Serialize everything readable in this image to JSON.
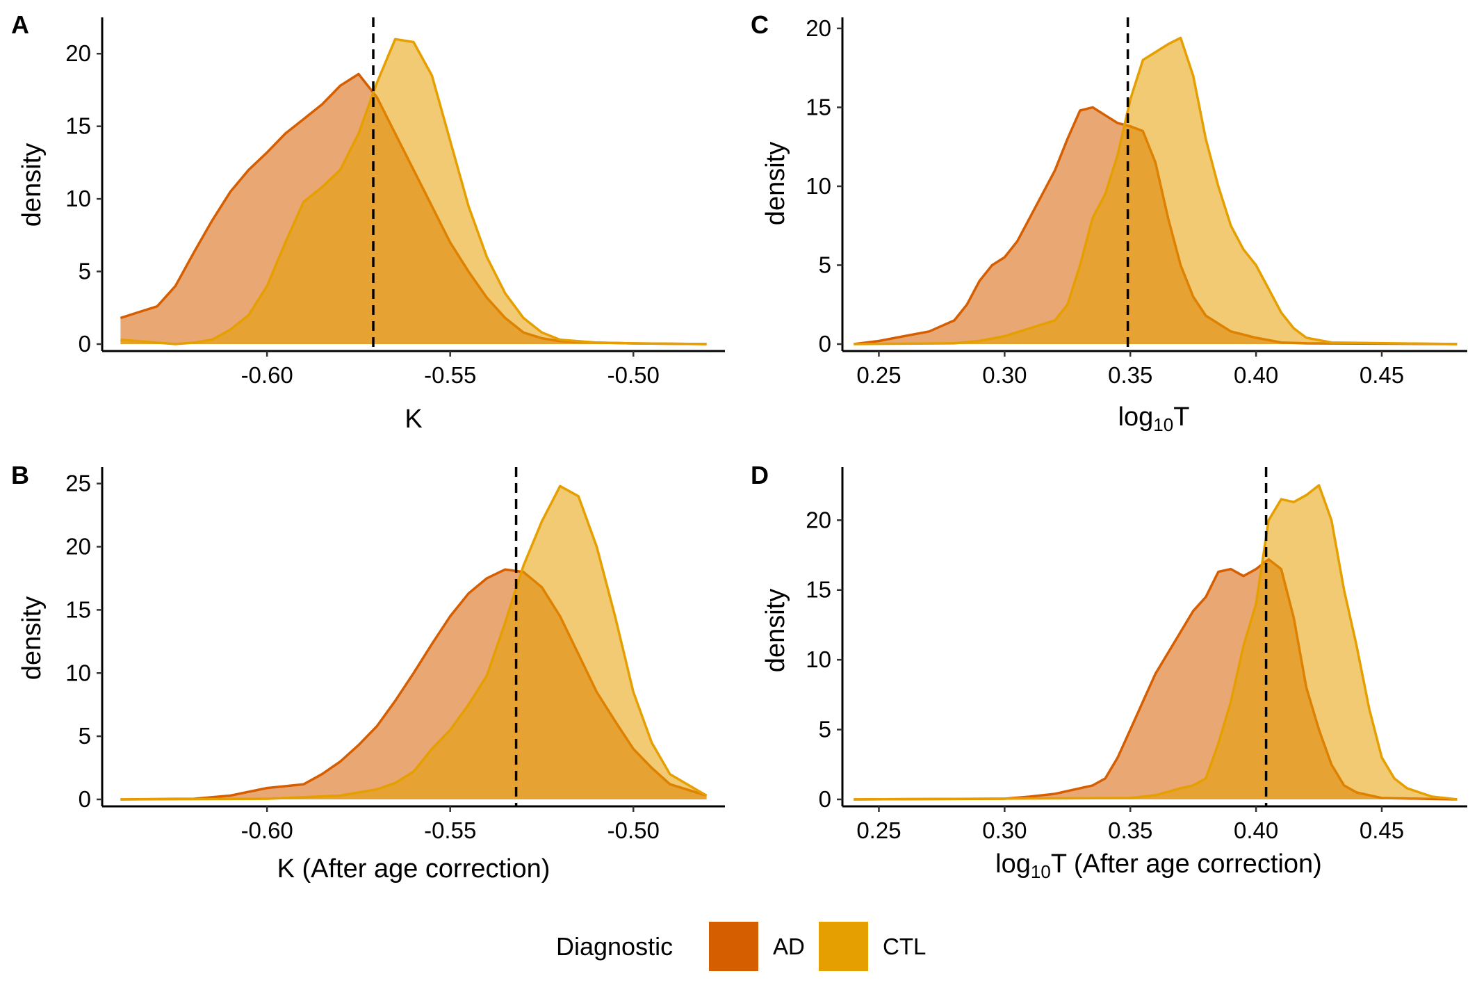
{
  "colors": {
    "AD": "#D55E00",
    "CTL": "#E69F00",
    "threshold_line": "#000000"
  },
  "legend": {
    "title": "Diagnostic",
    "items": [
      {
        "label": "AD",
        "color": "#D55E00"
      },
      {
        "label": "CTL",
        "color": "#E69F00"
      }
    ]
  },
  "chart_data": [
    {
      "panel": "A",
      "type": "area",
      "xlabel": "K",
      "ylabel": "density",
      "xlim": [
        -0.645,
        -0.475
      ],
      "ylim": [
        0,
        22.5
      ],
      "xticks": [
        -0.6,
        -0.55,
        -0.5
      ],
      "xtick_labels": [
        "-0.60",
        "-0.55",
        "-0.50"
      ],
      "yticks": [
        0,
        5,
        10,
        15,
        20
      ],
      "ytick_labels": [
        "0",
        "5",
        "10",
        "15",
        "20"
      ],
      "threshold": -0.571,
      "series": [
        {
          "name": "AD",
          "x": [
            -0.64,
            -0.635,
            -0.63,
            -0.625,
            -0.62,
            -0.615,
            -0.61,
            -0.605,
            -0.6,
            -0.595,
            -0.59,
            -0.585,
            -0.58,
            -0.575,
            -0.57,
            -0.565,
            -0.56,
            -0.555,
            -0.55,
            -0.545,
            -0.54,
            -0.535,
            -0.53,
            -0.525,
            -0.52,
            -0.51,
            -0.5,
            -0.48
          ],
          "y": [
            1.8,
            2.2,
            2.6,
            4.0,
            6.3,
            8.5,
            10.5,
            12.0,
            13.2,
            14.5,
            15.5,
            16.5,
            17.8,
            18.6,
            17.0,
            14.5,
            12.0,
            9.5,
            7.0,
            5.0,
            3.2,
            1.8,
            0.8,
            0.4,
            0.2,
            0.1,
            0.05,
            0.0
          ]
        },
        {
          "name": "CTL",
          "x": [
            -0.64,
            -0.63,
            -0.625,
            -0.62,
            -0.615,
            -0.61,
            -0.605,
            -0.6,
            -0.595,
            -0.59,
            -0.585,
            -0.58,
            -0.575,
            -0.57,
            -0.565,
            -0.56,
            -0.555,
            -0.55,
            -0.545,
            -0.54,
            -0.535,
            -0.53,
            -0.525,
            -0.52,
            -0.51,
            -0.5,
            -0.48
          ],
          "y": [
            0.3,
            0.1,
            0.0,
            0.1,
            0.3,
            1.0,
            2.0,
            4.0,
            7.0,
            9.8,
            10.8,
            12.0,
            14.5,
            18.0,
            21.0,
            20.8,
            18.5,
            14.0,
            9.5,
            6.0,
            3.5,
            1.8,
            0.8,
            0.3,
            0.1,
            0.05,
            0.0
          ]
        }
      ]
    },
    {
      "panel": "B",
      "type": "area",
      "xlabel": "K (After age correction)",
      "ylabel": "density",
      "xlim": [
        -0.645,
        -0.475
      ],
      "ylim": [
        0,
        26.3
      ],
      "xticks": [
        -0.6,
        -0.55,
        -0.5
      ],
      "xtick_labels": [
        "-0.60",
        "-0.55",
        "-0.50"
      ],
      "yticks": [
        0,
        5,
        10,
        15,
        20,
        25
      ],
      "ytick_labels": [
        "0",
        "5",
        "10",
        "15",
        "20",
        "25"
      ],
      "threshold": -0.532,
      "series": [
        {
          "name": "AD",
          "x": [
            -0.64,
            -0.62,
            -0.61,
            -0.6,
            -0.59,
            -0.585,
            -0.58,
            -0.575,
            -0.57,
            -0.565,
            -0.56,
            -0.555,
            -0.55,
            -0.545,
            -0.54,
            -0.535,
            -0.53,
            -0.525,
            -0.52,
            -0.515,
            -0.51,
            -0.505,
            -0.5,
            -0.495,
            -0.49,
            -0.48
          ],
          "y": [
            0.0,
            0.05,
            0.3,
            0.9,
            1.2,
            2.0,
            3.0,
            4.3,
            5.8,
            7.8,
            10.0,
            12.3,
            14.5,
            16.3,
            17.5,
            18.2,
            18.0,
            16.8,
            14.5,
            11.5,
            8.5,
            6.2,
            4.0,
            2.5,
            1.2,
            0.3
          ]
        },
        {
          "name": "CTL",
          "x": [
            -0.64,
            -0.6,
            -0.58,
            -0.57,
            -0.565,
            -0.56,
            -0.555,
            -0.55,
            -0.545,
            -0.54,
            -0.535,
            -0.53,
            -0.525,
            -0.52,
            -0.515,
            -0.51,
            -0.505,
            -0.5,
            -0.495,
            -0.49,
            -0.48
          ],
          "y": [
            0.0,
            0.05,
            0.3,
            0.8,
            1.3,
            2.2,
            4.0,
            5.5,
            7.5,
            9.8,
            14.0,
            18.5,
            22.0,
            24.8,
            24.0,
            20.0,
            14.5,
            8.5,
            4.5,
            2.0,
            0.3
          ]
        }
      ]
    },
    {
      "panel": "C",
      "type": "area",
      "xlabel": "log10T",
      "ylabel": "density",
      "xlim": [
        0.2355,
        0.484
      ],
      "ylim": [
        0,
        20.7
      ],
      "xticks": [
        0.25,
        0.3,
        0.35,
        0.4,
        0.45
      ],
      "xtick_labels": [
        "0.25",
        "0.30",
        "0.35",
        "0.40",
        "0.45"
      ],
      "yticks": [
        0,
        5,
        10,
        15,
        20
      ],
      "ytick_labels": [
        "0",
        "5",
        "10",
        "15",
        "20"
      ],
      "threshold": 0.349,
      "series": [
        {
          "name": "AD",
          "x": [
            0.24,
            0.25,
            0.26,
            0.27,
            0.28,
            0.285,
            0.29,
            0.295,
            0.3,
            0.305,
            0.31,
            0.315,
            0.32,
            0.325,
            0.33,
            0.335,
            0.34,
            0.345,
            0.35,
            0.355,
            0.36,
            0.365,
            0.37,
            0.375,
            0.38,
            0.39,
            0.4,
            0.41,
            0.42,
            0.48
          ],
          "y": [
            0.0,
            0.2,
            0.5,
            0.8,
            1.5,
            2.5,
            4.0,
            5.0,
            5.5,
            6.5,
            8.0,
            9.5,
            11.0,
            13.0,
            14.8,
            15.0,
            14.5,
            14.0,
            13.8,
            13.5,
            11.5,
            8.0,
            5.0,
            3.0,
            1.8,
            0.8,
            0.4,
            0.1,
            0.05,
            0.0
          ]
        },
        {
          "name": "CTL",
          "x": [
            0.24,
            0.28,
            0.29,
            0.3,
            0.31,
            0.32,
            0.325,
            0.33,
            0.335,
            0.34,
            0.345,
            0.35,
            0.355,
            0.36,
            0.365,
            0.37,
            0.375,
            0.38,
            0.385,
            0.39,
            0.395,
            0.4,
            0.405,
            0.41,
            0.415,
            0.42,
            0.43,
            0.48
          ],
          "y": [
            0.0,
            0.05,
            0.2,
            0.5,
            1.0,
            1.5,
            2.5,
            5.0,
            8.0,
            9.5,
            12.0,
            15.5,
            18.0,
            18.5,
            19.0,
            19.4,
            17.0,
            13.0,
            10.0,
            7.5,
            6.0,
            5.0,
            3.5,
            2.0,
            1.0,
            0.4,
            0.1,
            0.0
          ]
        }
      ]
    },
    {
      "panel": "D",
      "type": "area",
      "xlabel": "log10T (After age correction)",
      "ylabel": "density",
      "xlim": [
        0.2355,
        0.484
      ],
      "ylim": [
        0,
        23.8
      ],
      "xticks": [
        0.25,
        0.3,
        0.35,
        0.4,
        0.45
      ],
      "xtick_labels": [
        "0.25",
        "0.30",
        "0.35",
        "0.40",
        "0.45"
      ],
      "yticks": [
        0,
        5,
        10,
        15,
        20
      ],
      "ytick_labels": [
        "0",
        "5",
        "10",
        "15",
        "20"
      ],
      "threshold": 0.404,
      "series": [
        {
          "name": "AD",
          "x": [
            0.24,
            0.3,
            0.31,
            0.32,
            0.33,
            0.335,
            0.34,
            0.345,
            0.35,
            0.355,
            0.36,
            0.365,
            0.37,
            0.375,
            0.38,
            0.385,
            0.39,
            0.395,
            0.4,
            0.405,
            0.41,
            0.415,
            0.42,
            0.425,
            0.43,
            0.435,
            0.44,
            0.45,
            0.48
          ],
          "y": [
            0.0,
            0.05,
            0.2,
            0.4,
            0.8,
            1.0,
            1.5,
            3.0,
            5.0,
            7.0,
            9.0,
            10.5,
            12.0,
            13.5,
            14.5,
            16.3,
            16.5,
            16.0,
            16.5,
            17.2,
            16.5,
            13.0,
            8.0,
            5.0,
            2.5,
            1.0,
            0.5,
            0.1,
            0.0
          ]
        },
        {
          "name": "CTL",
          "x": [
            0.24,
            0.35,
            0.36,
            0.37,
            0.375,
            0.38,
            0.385,
            0.39,
            0.395,
            0.4,
            0.405,
            0.41,
            0.415,
            0.42,
            0.425,
            0.43,
            0.435,
            0.44,
            0.445,
            0.45,
            0.455,
            0.46,
            0.465,
            0.47,
            0.48
          ],
          "y": [
            0.0,
            0.1,
            0.3,
            0.8,
            1.0,
            1.5,
            4.0,
            7.0,
            11.0,
            14.0,
            20.0,
            21.5,
            21.3,
            21.8,
            22.5,
            20.0,
            15.0,
            11.0,
            6.5,
            3.0,
            1.5,
            0.8,
            0.5,
            0.2,
            0.0
          ]
        }
      ]
    }
  ]
}
